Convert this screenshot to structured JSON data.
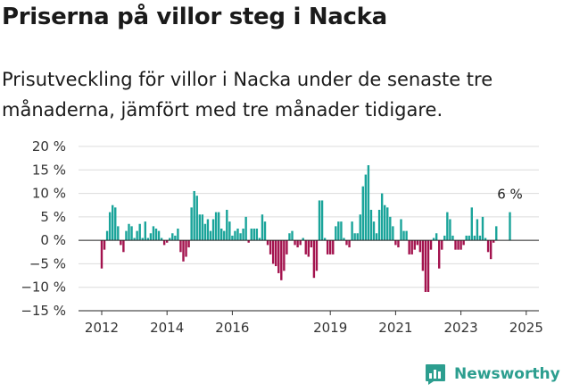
{
  "header": {
    "title": "Priserna på villor steg i Nacka",
    "subtitle": "Prisutveckling för villor i Nacka under de senaste tre månaderna, jämfört med tre månader tidigare."
  },
  "brand": {
    "name": "Newsworthy",
    "icon": "newsworthy-logo-icon"
  },
  "colors": {
    "positive": "#1aa49a",
    "negative": "#a3134e",
    "brand": "#2c9e8f"
  },
  "chart_data": {
    "type": "bar",
    "start": "2012-01",
    "frequency": "monthly",
    "end_label": "6 %",
    "ylim": [
      -15,
      20
    ],
    "yticks": [
      20,
      15,
      10,
      5,
      0,
      -5,
      -10,
      -15
    ],
    "ytick_labels": [
      "20 %",
      "15 %",
      "10 %",
      "5 %",
      "0 %",
      "−5 %",
      "−10 %",
      "−15 %"
    ],
    "xticks": [
      2012,
      2014,
      2016,
      2019,
      2021,
      2023,
      2025
    ],
    "xtick_labels": [
      "2012",
      "2014",
      "2016",
      "2019",
      "2021",
      "2023",
      "2025"
    ],
    "values": [
      -6,
      -2,
      2,
      6,
      7.5,
      7,
      3,
      -1,
      -2.5,
      2,
      3.5,
      3,
      0.5,
      2,
      3.5,
      0.5,
      4,
      0.5,
      1.5,
      3,
      2.5,
      2,
      0.5,
      -1,
      -0.5,
      0.5,
      1.5,
      1,
      2.5,
      -2.5,
      -4.5,
      -3.5,
      -1.5,
      7,
      10.5,
      9.5,
      5.5,
      5.5,
      3.5,
      4.5,
      2,
      4.5,
      6,
      6,
      2.5,
      2,
      6.5,
      4,
      1,
      2,
      2.5,
      1.5,
      2.5,
      5,
      -0.5,
      2.5,
      2.5,
      2.5,
      0.5,
      5.5,
      4,
      -1,
      -3,
      -5,
      -5.5,
      -7,
      -8.5,
      -6.5,
      -3,
      1.5,
      2,
      -1,
      -1.5,
      -1,
      0.5,
      -3,
      -3.5,
      -1.5,
      -8,
      -6.5,
      8.5,
      8.5,
      0.5,
      -3,
      -3,
      -3,
      3,
      4,
      4,
      0.5,
      -1,
      -1.5,
      4,
      1.5,
      1.5,
      5.5,
      11.5,
      14,
      16,
      6.5,
      4,
      1.5,
      6.5,
      10,
      7.5,
      7,
      5,
      3,
      -1,
      -1.5,
      4.5,
      2,
      2,
      -3,
      -3,
      -2,
      -1,
      -2.5,
      -6.5,
      -11,
      -11,
      -2,
      0.5,
      1.5,
      -6,
      -2,
      1,
      6,
      4.5,
      1,
      -2,
      -2,
      -2,
      -1,
      1,
      1,
      7,
      1,
      4.5,
      1,
      5,
      0.5,
      -2.5,
      -4,
      -0.5,
      3,
      0,
      0,
      0,
      0,
      6
    ]
  }
}
